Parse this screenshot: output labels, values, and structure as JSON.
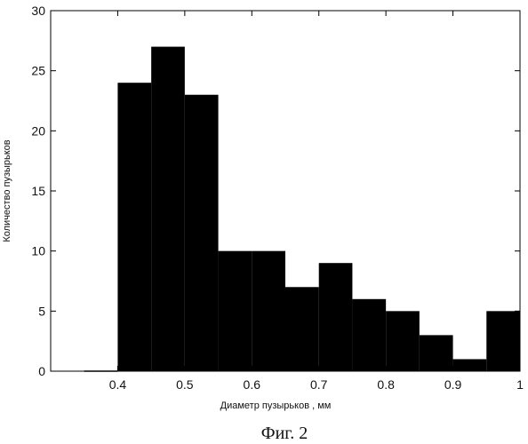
{
  "chart_data": {
    "type": "bar",
    "bin_width": 0.05,
    "bin_starts": [
      0.35,
      0.4,
      0.45,
      0.5,
      0.55,
      0.6,
      0.65,
      0.7,
      0.75,
      0.8,
      0.85,
      0.9,
      0.95
    ],
    "values": [
      0,
      24,
      27,
      23,
      10,
      10,
      7,
      9,
      6,
      5,
      3,
      1,
      5
    ],
    "xlim": [
      0.3,
      1.0
    ],
    "ylim": [
      0,
      30
    ],
    "xticks": [
      0.4,
      0.5,
      0.6,
      0.7,
      0.8,
      0.9,
      1.0
    ],
    "xtick_labels": [
      "0.4",
      "0.5",
      "0.6",
      "0.7",
      "0.8",
      "0.9",
      "1"
    ],
    "yticks": [
      0,
      5,
      10,
      15,
      20,
      25,
      30
    ],
    "ytick_labels": [
      "0",
      "5",
      "10",
      "15",
      "20",
      "25",
      "30"
    ],
    "xlabel": "Диаметр пузырьков , мм",
    "ylabel": "Количество пузырьков",
    "bar_color": "#000000",
    "grid": false
  },
  "caption": "Фиг. 2"
}
